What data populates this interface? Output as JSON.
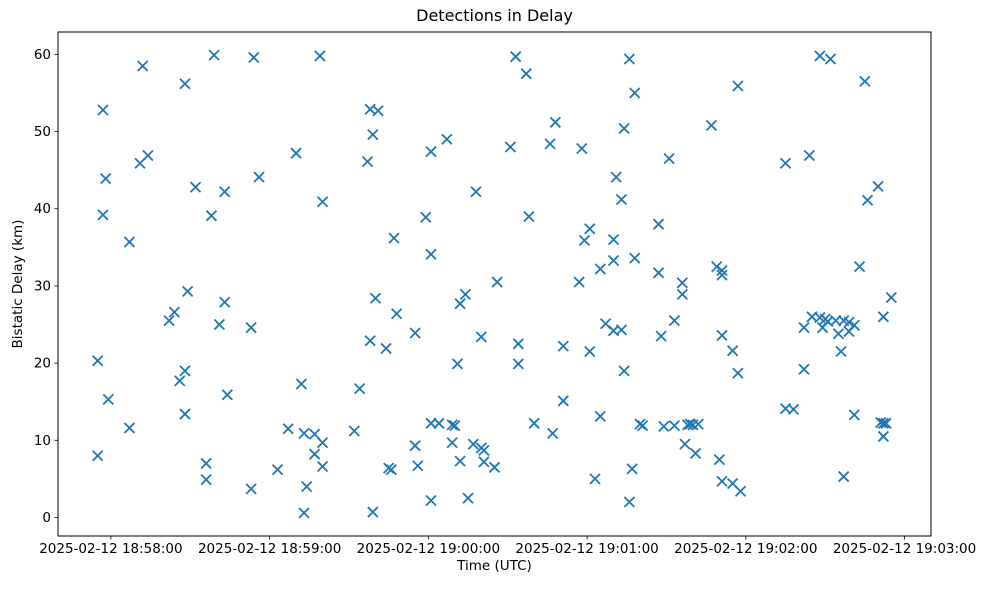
{
  "chart_data": {
    "type": "scatter",
    "title": "Detections in Delay",
    "xlabel": "Time (UTC)",
    "ylabel": "Bistatic Delay (km)",
    "marker": "x",
    "marker_color": "#1f77b4",
    "x_unit": "seconds after 2025-02-12 18:58:00",
    "xlim": [
      -20,
      310
    ],
    "ylim": [
      -2.4,
      62.9
    ],
    "x_ticks": [
      {
        "value": 0,
        "label": "2025-02-12 18:58:00"
      },
      {
        "value": 60,
        "label": "2025-02-12 18:59:00"
      },
      {
        "value": 120,
        "label": "2025-02-12 19:00:00"
      },
      {
        "value": 180,
        "label": "2025-02-12 19:01:00"
      },
      {
        "value": 240,
        "label": "2025-02-12 19:02:00"
      },
      {
        "value": 300,
        "label": "2025-02-12 19:03:00"
      }
    ],
    "y_ticks": [
      0,
      10,
      20,
      30,
      40,
      50,
      60
    ],
    "points": [
      [
        -5,
        20.3
      ],
      [
        -5,
        8.0
      ],
      [
        -3,
        52.8
      ],
      [
        -3,
        39.2
      ],
      [
        -2,
        43.9
      ],
      [
        -1,
        15.3
      ],
      [
        7,
        35.7
      ],
      [
        7,
        11.6
      ],
      [
        11,
        45.9
      ],
      [
        12,
        58.5
      ],
      [
        14,
        46.9
      ],
      [
        22,
        25.5
      ],
      [
        24,
        26.6
      ],
      [
        26,
        17.7
      ],
      [
        28,
        56.2
      ],
      [
        28,
        19.0
      ],
      [
        28,
        13.4
      ],
      [
        29,
        29.3
      ],
      [
        32,
        42.8
      ],
      [
        36,
        7.0
      ],
      [
        36,
        4.9
      ],
      [
        38,
        39.1
      ],
      [
        39,
        59.9
      ],
      [
        41,
        25.0
      ],
      [
        43,
        42.2
      ],
      [
        43,
        27.9
      ],
      [
        44,
        15.9
      ],
      [
        53,
        24.6
      ],
      [
        53,
        3.7
      ],
      [
        54,
        59.6
      ],
      [
        56,
        44.1
      ],
      [
        63,
        6.2
      ],
      [
        67,
        11.5
      ],
      [
        70,
        47.2
      ],
      [
        72,
        17.3
      ],
      [
        73,
        10.9
      ],
      [
        73,
        0.6
      ],
      [
        74,
        4.0
      ],
      [
        77,
        10.8
      ],
      [
        77,
        8.2
      ],
      [
        79,
        59.8
      ],
      [
        80,
        40.9
      ],
      [
        80,
        9.7
      ],
      [
        80,
        6.6
      ],
      [
        92,
        11.2
      ],
      [
        94,
        16.7
      ],
      [
        97,
        46.1
      ],
      [
        98,
        52.9
      ],
      [
        98,
        22.9
      ],
      [
        99,
        49.6
      ],
      [
        99,
        0.7
      ],
      [
        100,
        28.4
      ],
      [
        101,
        52.7
      ],
      [
        104,
        21.9
      ],
      [
        105,
        6.4
      ],
      [
        106,
        6.2
      ],
      [
        107,
        36.2
      ],
      [
        108,
        26.4
      ],
      [
        115,
        23.9
      ],
      [
        115,
        9.3
      ],
      [
        116,
        6.7
      ],
      [
        119,
        38.9
      ],
      [
        121,
        47.4
      ],
      [
        121,
        34.1
      ],
      [
        121,
        12.2
      ],
      [
        121,
        2.2
      ],
      [
        124,
        12.2
      ],
      [
        127,
        49.0
      ],
      [
        129,
        12.0
      ],
      [
        129,
        9.7
      ],
      [
        130,
        11.9
      ],
      [
        131,
        19.9
      ],
      [
        132,
        27.7
      ],
      [
        132,
        7.3
      ],
      [
        134,
        28.9
      ],
      [
        135,
        2.5
      ],
      [
        137,
        9.5
      ],
      [
        138,
        42.2
      ],
      [
        140,
        23.4
      ],
      [
        140,
        9.0
      ],
      [
        141,
        8.7
      ],
      [
        141,
        7.2
      ],
      [
        145,
        6.5
      ],
      [
        146,
        30.5
      ],
      [
        151,
        48.0
      ],
      [
        153,
        59.7
      ],
      [
        154,
        22.5
      ],
      [
        154,
        19.9
      ],
      [
        157,
        57.5
      ],
      [
        158,
        39.0
      ],
      [
        160,
        12.2
      ],
      [
        166,
        48.4
      ],
      [
        167,
        10.9
      ],
      [
        168,
        51.2
      ],
      [
        171,
        22.2
      ],
      [
        171,
        15.1
      ],
      [
        177,
        30.5
      ],
      [
        178,
        47.8
      ],
      [
        179,
        35.9
      ],
      [
        181,
        37.4
      ],
      [
        181,
        21.5
      ],
      [
        183,
        5.0
      ],
      [
        185,
        32.2
      ],
      [
        185,
        13.1
      ],
      [
        187,
        25.1
      ],
      [
        190,
        33.3
      ],
      [
        190,
        36.0
      ],
      [
        190,
        24.2
      ],
      [
        191,
        44.1
      ],
      [
        193,
        41.2
      ],
      [
        193,
        24.3
      ],
      [
        194,
        50.4
      ],
      [
        194,
        19.0
      ],
      [
        196,
        59.4
      ],
      [
        196,
        2.0
      ],
      [
        197,
        6.3
      ],
      [
        198,
        55.0
      ],
      [
        198,
        33.6
      ],
      [
        200,
        12.1
      ],
      [
        201,
        11.9
      ],
      [
        207,
        38.0
      ],
      [
        207,
        31.7
      ],
      [
        208,
        23.5
      ],
      [
        209,
        11.8
      ],
      [
        211,
        46.5
      ],
      [
        213,
        25.5
      ],
      [
        213,
        11.9
      ],
      [
        216,
        30.4
      ],
      [
        216,
        28.9
      ],
      [
        217,
        9.5
      ],
      [
        218,
        12.0
      ],
      [
        219,
        12.1
      ],
      [
        220,
        12.0
      ],
      [
        221,
        8.3
      ],
      [
        222,
        12.1
      ],
      [
        227,
        50.8
      ],
      [
        229,
        32.5
      ],
      [
        230,
        7.5
      ],
      [
        231,
        32.0
      ],
      [
        231,
        31.4
      ],
      [
        231,
        23.6
      ],
      [
        231,
        4.7
      ],
      [
        235,
        21.6
      ],
      [
        235,
        4.4
      ],
      [
        237,
        55.9
      ],
      [
        237,
        18.7
      ],
      [
        238,
        3.4
      ],
      [
        255,
        45.9
      ],
      [
        255,
        14.1
      ],
      [
        258,
        14.0
      ],
      [
        262,
        24.6
      ],
      [
        262,
        19.2
      ],
      [
        264,
        46.9
      ],
      [
        265,
        26.0
      ],
      [
        268,
        59.8
      ],
      [
        268,
        25.9
      ],
      [
        269,
        24.6
      ],
      [
        270,
        25.7
      ],
      [
        271,
        25.4
      ],
      [
        272,
        59.4
      ],
      [
        274,
        25.5
      ],
      [
        275,
        23.8
      ],
      [
        276,
        21.5
      ],
      [
        277,
        25.5
      ],
      [
        277,
        5.3
      ],
      [
        279,
        25.3
      ],
      [
        279,
        24.1
      ],
      [
        281,
        24.9
      ],
      [
        281,
        13.3
      ],
      [
        283,
        32.5
      ],
      [
        285,
        56.5
      ],
      [
        286,
        41.1
      ],
      [
        290,
        42.9
      ],
      [
        291,
        12.3
      ],
      [
        292,
        26.0
      ],
      [
        292,
        12.2
      ],
      [
        292,
        10.5
      ],
      [
        293,
        12.2
      ],
      [
        295,
        28.5
      ]
    ]
  }
}
